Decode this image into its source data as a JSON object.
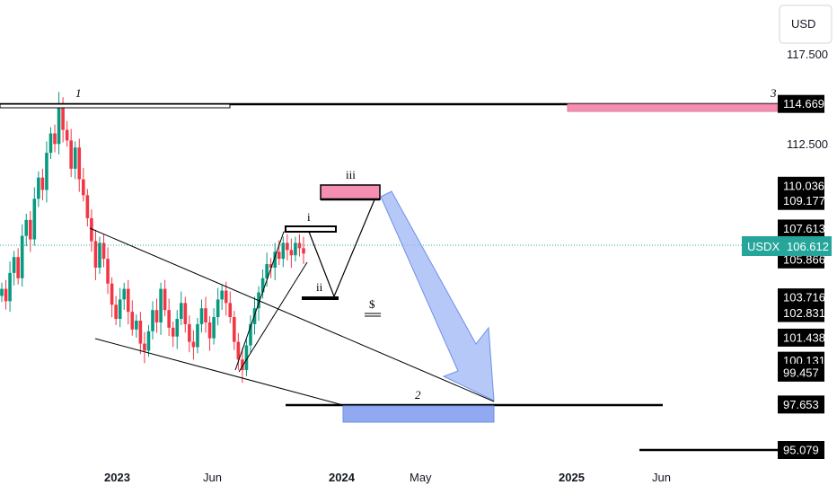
{
  "currency": "USD",
  "symbol_label": "USDX",
  "symbol_price": "106.612",
  "price_ticks": [
    "117.500",
    "112.500"
  ],
  "price_labels_black": [
    "114.669",
    "110.036",
    "109.177",
    "107.613",
    "105.866",
    "103.716",
    "102.831",
    "101.438",
    "100.131",
    "99.457",
    "97.653",
    "95.079"
  ],
  "date_ticks": [
    {
      "label": "2023",
      "bold": true
    },
    {
      "label": "Jun",
      "bold": false
    },
    {
      "label": "2024",
      "bold": true
    },
    {
      "label": "May",
      "bold": false
    },
    {
      "label": "2025",
      "bold": true
    },
    {
      "label": "Jun",
      "bold": false
    }
  ],
  "annotations": {
    "label_1": "1",
    "label_2": "2",
    "label_3": "3",
    "wave_i": "i",
    "wave_ii": "ii",
    "wave_iii": "iii",
    "dollar": "$"
  },
  "colors": {
    "up": "#089981",
    "down": "#f23645",
    "pink_zone": "#f48fb1",
    "blue_zone": "#90a9f0",
    "arrow_fill": "#9db6f5",
    "symbol_bg": "#26a69a",
    "line": "#000000",
    "dotted": "#26a69a"
  },
  "chart_data": {
    "type": "candlestick",
    "ylabel": "USD",
    "ylim": [
      94.5,
      118.5
    ],
    "current_price": 106.612,
    "horizontal_levels": [
      114.669,
      110.036,
      109.177,
      107.613,
      105.866,
      103.716,
      102.831,
      101.438,
      100.131,
      99.457,
      97.653,
      95.079
    ],
    "series": [
      {
        "values": [
          104.2,
          103.5,
          105.1,
          106.0,
          104.8,
          107.2,
          108.1,
          107.0,
          109.3,
          110.5,
          109.8,
          111.9,
          113.0,
          112.4,
          114.7,
          113.2,
          112.6,
          111.0,
          112.2,
          110.4,
          109.5,
          108.2,
          106.9,
          105.4,
          106.8,
          105.9,
          104.5,
          103.3,
          102.5,
          103.6,
          104.2,
          102.9,
          101.9,
          102.4,
          101.1,
          100.7,
          101.8,
          103.0,
          102.3,
          104.2,
          103.0,
          102.0,
          101.5,
          102.5,
          103.4,
          102.2,
          101.2,
          100.9,
          102.2,
          103.1,
          102.3,
          101.4,
          102.6,
          103.6,
          104.1,
          103.4,
          102.6,
          101.2,
          100.2,
          99.6,
          101.0,
          102.2,
          103.1,
          104.0,
          104.8,
          105.6,
          105.4,
          106.3,
          105.9,
          106.8,
          106.4,
          106.1,
          106.8,
          106.5,
          106.2
        ]
      }
    ]
  }
}
